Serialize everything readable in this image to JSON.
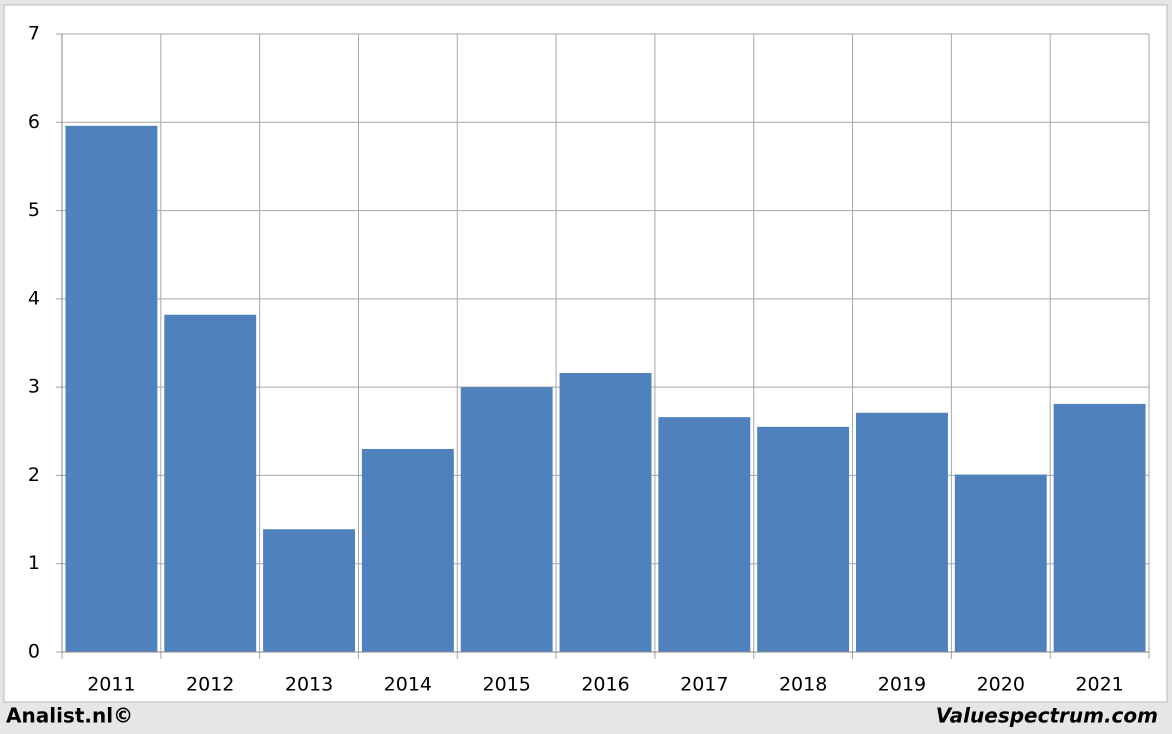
{
  "chart_data": {
    "type": "bar",
    "categories": [
      "2011",
      "2012",
      "2013",
      "2014",
      "2015",
      "2016",
      "2017",
      "2018",
      "2019",
      "2020",
      "2021"
    ],
    "values": [
      5.96,
      3.82,
      1.39,
      2.3,
      3.0,
      3.16,
      2.66,
      2.55,
      2.71,
      2.01,
      2.81
    ],
    "color": "#4f81bd",
    "ylim": [
      0,
      7
    ],
    "yticks": [
      0,
      1,
      2,
      3,
      4,
      5,
      6,
      7
    ],
    "grid": true,
    "annotations": [
      "Analist.nl©",
      "Valuespectrum.com"
    ]
  }
}
